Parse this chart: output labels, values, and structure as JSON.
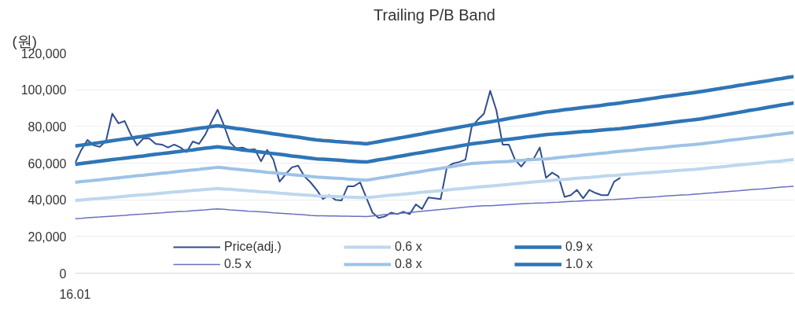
{
  "chart_data": {
    "type": "line",
    "title": "Trailing P/B Band",
    "ylabel": "(원)",
    "categories": [
      "16.01",
      null,
      null,
      null,
      null,
      null,
      null,
      null,
      null,
      null,
      null,
      null,
      null,
      null,
      null,
      null,
      null,
      null,
      null,
      null,
      null,
      null,
      null,
      null,
      null,
      null,
      null,
      null,
      null,
      null,
      null,
      null,
      null,
      null,
      null,
      null,
      null,
      null,
      null,
      null,
      null,
      null,
      null,
      null,
      null,
      null,
      null,
      null,
      null,
      null,
      null,
      null,
      null,
      null,
      null,
      null,
      null,
      null,
      null,
      null,
      null,
      null,
      null,
      null,
      null,
      null,
      null,
      null,
      null,
      null,
      null,
      null,
      null,
      null,
      null,
      null,
      null,
      null,
      null,
      null,
      null,
      null,
      null,
      null,
      null,
      null,
      null,
      null,
      null,
      null,
      null,
      null,
      null,
      null,
      null,
      null,
      null,
      null,
      null,
      null,
      null,
      null,
      null,
      null,
      null,
      null,
      null,
      null,
      null,
      null,
      null,
      null,
      null,
      null,
      null,
      null,
      null
    ],
    "ylim": [
      0,
      120000
    ],
    "yticks": [
      {
        "value": 0,
        "label": "0"
      },
      {
        "value": 20000,
        "label": "20,000"
      },
      {
        "value": 40000,
        "label": "40,000"
      },
      {
        "value": 60000,
        "label": "60,000"
      },
      {
        "value": 80000,
        "label": "80,000"
      },
      {
        "value": 100000,
        "label": "100,000"
      },
      {
        "value": 120000,
        "label": "120,000"
      }
    ],
    "grid": "y",
    "legend": "bottom",
    "line_style": "solid",
    "marker": "none",
    "series": [
      {
        "name": "Price(adj.)",
        "color": "#2f4e8f",
        "values": [
          60000,
          67200,
          72600,
          69700,
          68900,
          72200,
          87000,
          81700,
          82900,
          75500,
          69700,
          73400,
          73400,
          70500,
          70100,
          68500,
          70100,
          68500,
          66000,
          71800,
          70500,
          75500,
          82500,
          89100,
          80800,
          71300,
          68000,
          68500,
          67200,
          67600,
          61000,
          67200,
          61900,
          49900,
          54000,
          57700,
          58600,
          52800,
          49500,
          45400,
          40400,
          42500,
          40000,
          39600,
          47400,
          47400,
          49500,
          41200,
          33000,
          30100,
          30900,
          33000,
          32200,
          33400,
          32200,
          37500,
          35000,
          41200,
          40800,
          40400,
          57700,
          59800,
          60600,
          61900,
          79600,
          83700,
          87000,
          99400,
          88700,
          70100,
          70100,
          61900,
          58100,
          62300,
          62300,
          68500,
          52000,
          54800,
          52800,
          41600,
          42500,
          45400,
          40800,
          45400,
          43700,
          42500,
          42500,
          49900,
          52000,
          null,
          null,
          null,
          null,
          null,
          null,
          null,
          null,
          null,
          null,
          null,
          null,
          null,
          null,
          null,
          null,
          null,
          null,
          null,
          null,
          null,
          null,
          null,
          null,
          null,
          null,
          null,
          null
        ]
      },
      {
        "name": "0.5 x",
        "color": "#6a6fc0",
        "values": [
          29700,
          29900,
          30200,
          30400,
          30600,
          30900,
          31100,
          31300,
          31500,
          31800,
          32000,
          32200,
          32500,
          32700,
          32900,
          33200,
          33400,
          33600,
          33800,
          34100,
          34300,
          34500,
          34800,
          35000,
          34800,
          34500,
          34300,
          34100,
          33800,
          33600,
          33400,
          33200,
          32900,
          32700,
          32500,
          32200,
          32000,
          31800,
          31500,
          31300,
          31300,
          31200,
          31200,
          31100,
          31100,
          31000,
          31000,
          30900,
          31200,
          31500,
          31900,
          32200,
          32500,
          32800,
          33100,
          33400,
          33800,
          34100,
          34400,
          34700,
          35000,
          35400,
          35700,
          36000,
          36300,
          36500,
          36700,
          36800,
          37000,
          37200,
          37400,
          37600,
          37800,
          38000,
          38100,
          38300,
          38400,
          38600,
          38700,
          38900,
          39100,
          39200,
          39400,
          39600,
          39700,
          39900,
          40100,
          40200,
          40400,
          40600,
          40800,
          41100,
          41300,
          41500,
          41700,
          42000,
          42200,
          42400,
          42600,
          42800,
          43100,
          43300,
          43600,
          43800,
          44100,
          44400,
          44700,
          44900,
          45200,
          45500,
          45800,
          46000,
          46300,
          46600,
          46900,
          47100,
          47400
        ]
      },
      {
        "name": "0.6 x",
        "color": "#bdd7ee",
        "values": [
          39600,
          39900,
          40200,
          40500,
          40700,
          41000,
          41300,
          41600,
          41900,
          42200,
          42500,
          42800,
          43000,
          43300,
          43600,
          43900,
          44200,
          44500,
          44800,
          45100,
          45300,
          45600,
          45900,
          46200,
          45900,
          45700,
          45400,
          45200,
          44900,
          44700,
          44400,
          44200,
          43900,
          43600,
          43400,
          43100,
          42900,
          42600,
          42400,
          42100,
          42000,
          41900,
          41800,
          41700,
          41500,
          41400,
          41300,
          41200,
          41500,
          41800,
          42200,
          42500,
          42800,
          43100,
          43400,
          43700,
          44100,
          44400,
          44700,
          45000,
          45300,
          45700,
          46000,
          46300,
          46600,
          46900,
          47200,
          47500,
          47800,
          48100,
          48400,
          48800,
          49100,
          49400,
          49700,
          50000,
          50300,
          50600,
          50900,
          51100,
          51400,
          51700,
          52000,
          52200,
          52500,
          52800,
          53100,
          53300,
          53600,
          53900,
          54100,
          54400,
          54600,
          54900,
          55100,
          55400,
          55600,
          55900,
          56100,
          56400,
          56600,
          56900,
          57200,
          57600,
          57900,
          58200,
          58600,
          58900,
          59200,
          59600,
          59900,
          60200,
          60600,
          60900,
          61200,
          61600,
          61900
        ]
      },
      {
        "name": "0.8 x",
        "color": "#9dc3e6",
        "values": [
          49500,
          49900,
          50200,
          50600,
          50900,
          51300,
          51600,
          52000,
          52400,
          52700,
          53100,
          53400,
          53800,
          54100,
          54500,
          54800,
          55200,
          55600,
          55900,
          56300,
          56600,
          57000,
          57300,
          57700,
          57400,
          57000,
          56700,
          56400,
          56000,
          55700,
          55400,
          55000,
          54700,
          54400,
          54100,
          53700,
          53400,
          53100,
          52700,
          52400,
          52200,
          52000,
          51800,
          51600,
          51300,
          51100,
          50900,
          50700,
          51200,
          51800,
          52300,
          52800,
          53400,
          53900,
          54500,
          55000,
          55500,
          56100,
          56600,
          57100,
          57700,
          58200,
          58800,
          59300,
          59800,
          60000,
          60200,
          60400,
          60600,
          60800,
          61000,
          61300,
          61500,
          61700,
          61900,
          62100,
          62300,
          62600,
          63000,
          63300,
          63700,
          64000,
          64400,
          64700,
          65000,
          65400,
          65700,
          66100,
          66400,
          66700,
          67000,
          67400,
          67700,
          68000,
          68300,
          68600,
          69000,
          69300,
          69600,
          69900,
          70200,
          70500,
          70900,
          71300,
          71700,
          72200,
          72600,
          73000,
          73400,
          73800,
          74200,
          74600,
          75000,
          75500,
          75900,
          76300,
          76700
        ]
      },
      {
        "name": "0.9 x",
        "color": "#2e75b6",
        "values": [
          59400,
          59800,
          60200,
          60600,
          61100,
          61500,
          61900,
          62300,
          62700,
          63100,
          63500,
          63900,
          64400,
          64800,
          65200,
          65600,
          66000,
          66400,
          66800,
          67200,
          67700,
          68100,
          68500,
          68900,
          68500,
          68100,
          67700,
          67200,
          66800,
          66400,
          66000,
          65600,
          65200,
          64800,
          64400,
          63900,
          63500,
          63100,
          62700,
          62300,
          62100,
          61900,
          61700,
          61500,
          61200,
          61000,
          60800,
          60600,
          61200,
          61800,
          62300,
          62900,
          63500,
          64100,
          64700,
          65300,
          65800,
          66400,
          67000,
          67600,
          68200,
          68700,
          69300,
          69900,
          70500,
          70900,
          71300,
          71800,
          72200,
          72600,
          73000,
          73400,
          73800,
          74300,
          74700,
          75100,
          75500,
          75800,
          76100,
          76300,
          76600,
          76900,
          77200,
          77400,
          77700,
          78000,
          78300,
          78500,
          78800,
          79200,
          79600,
          80000,
          80400,
          80800,
          81200,
          81600,
          82100,
          82500,
          82900,
          83300,
          83700,
          84100,
          84700,
          85300,
          85800,
          86400,
          87000,
          87600,
          88200,
          88800,
          89300,
          89900,
          90500,
          91100,
          91700,
          92200,
          92800
        ]
      },
      {
        "name": "1.0 x",
        "color": "#2e75b6",
        "values": [
          69300,
          69800,
          70300,
          70700,
          71200,
          71700,
          72200,
          72700,
          73200,
          73600,
          74100,
          74600,
          75100,
          75600,
          76100,
          76500,
          77000,
          77500,
          78000,
          78500,
          79000,
          79400,
          79900,
          80400,
          79900,
          79400,
          78900,
          78500,
          78000,
          77500,
          77000,
          76500,
          76000,
          75500,
          75000,
          74600,
          74100,
          73600,
          73100,
          72600,
          72300,
          72100,
          71800,
          71600,
          71300,
          71000,
          70800,
          70500,
          71100,
          71700,
          72300,
          72900,
          73500,
          74100,
          74700,
          75300,
          75900,
          76600,
          77200,
          77800,
          78400,
          79000,
          79600,
          80200,
          80800,
          81400,
          82000,
          82500,
          83100,
          83700,
          84300,
          84900,
          85500,
          86000,
          86600,
          87200,
          87800,
          88200,
          88600,
          89100,
          89500,
          89900,
          90300,
          90700,
          91100,
          91500,
          92000,
          92400,
          92800,
          93300,
          93800,
          94200,
          94700,
          95200,
          95700,
          96200,
          96600,
          97100,
          97600,
          98000,
          98500,
          99000,
          99500,
          100100,
          100600,
          101200,
          101700,
          102300,
          102800,
          103400,
          103900,
          104500,
          105000,
          105600,
          106100,
          106700,
          107200
        ]
      }
    ]
  }
}
